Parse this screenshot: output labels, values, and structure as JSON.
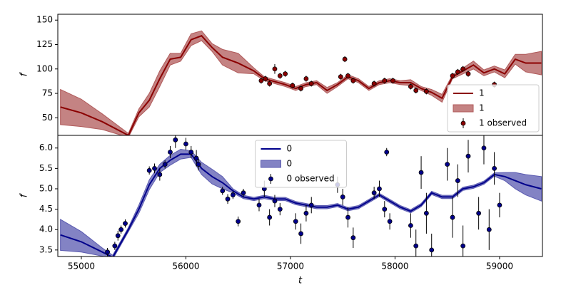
{
  "chart_data": [
    {
      "type": "line",
      "ylabel": "f",
      "xlim": [
        54775,
        59410
      ],
      "ylim": [
        32,
        156
      ],
      "yticks": [
        50,
        75,
        100,
        125,
        150
      ],
      "legend": "lower right",
      "series": [
        {
          "name": "1",
          "kind": "line",
          "color": "#8b0000",
          "x": [
            54800,
            55000,
            55200,
            55450,
            55550,
            55650,
            55750,
            55850,
            55950,
            56050,
            56150,
            56250,
            56350,
            56500,
            56650,
            56750,
            56850,
            56950,
            57050,
            57150,
            57250,
            57350,
            57450,
            57550,
            57650,
            57750,
            57850,
            57950,
            58050,
            58150,
            58250,
            58350,
            58450,
            58550,
            58650,
            58750,
            58850,
            58950,
            59050,
            59150,
            59250,
            59400
          ],
          "values": [
            61,
            55,
            46,
            32,
            55,
            68,
            90,
            110,
            112,
            130,
            134,
            122,
            112,
            106,
            98,
            90,
            87,
            84,
            80,
            84,
            86,
            78,
            84,
            92,
            88,
            80,
            86,
            88,
            86,
            86,
            80,
            76,
            70,
            92,
            98,
            104,
            96,
            100,
            95,
            110,
            106,
            106
          ]
        },
        {
          "name": "1",
          "kind": "band",
          "color": "#b05a5a",
          "x": [
            54800,
            55000,
            55200,
            55450,
            55550,
            55650,
            55750,
            55850,
            55950,
            56050,
            56150,
            56250,
            56350,
            56500,
            56650,
            56750,
            56850,
            56950,
            57050,
            57150,
            57250,
            57350,
            57450,
            57550,
            57650,
            57750,
            57850,
            57950,
            58050,
            58150,
            58250,
            58350,
            58450,
            58550,
            58650,
            58750,
            58850,
            58950,
            59050,
            59150,
            59250,
            59400
          ],
          "lower": [
            43,
            41,
            38,
            30,
            51,
            61,
            82,
            104,
            108,
            124,
            129,
            118,
            104,
            96,
            95,
            88,
            85,
            82,
            78,
            82,
            84,
            75,
            82,
            90,
            86,
            78,
            84,
            86,
            84,
            83,
            78,
            73,
            66,
            90,
            95,
            100,
            93,
            97,
            91,
            105,
            97,
            94
          ],
          "upper": [
            79,
            69,
            54,
            34,
            59,
            75,
            98,
            116,
            116,
            136,
            139,
            126,
            120,
            116,
            101,
            92,
            89,
            86,
            82,
            86,
            88,
            81,
            86,
            94,
            90,
            82,
            88,
            90,
            88,
            89,
            82,
            79,
            74,
            94,
            101,
            108,
            99,
            103,
            99,
            115,
            115,
            118
          ]
        },
        {
          "name": "1 observed",
          "kind": "errorbar",
          "color": "#8b0000",
          "x": [
            56720,
            56760,
            56800,
            56850,
            56900,
            56950,
            57020,
            57100,
            57150,
            57200,
            57480,
            57520,
            57550,
            57600,
            57800,
            57900,
            57980,
            58150,
            58200,
            58300,
            58550,
            58600,
            58650,
            58700,
            58950
          ],
          "values": [
            88,
            90,
            85,
            100,
            93,
            95,
            83,
            80,
            90,
            85,
            92,
            110,
            93,
            88,
            85,
            88,
            88,
            82,
            78,
            77,
            93,
            97,
            100,
            95,
            84
          ],
          "errors": [
            3,
            3,
            3,
            5,
            3,
            3,
            3,
            3,
            3,
            3,
            3,
            3,
            3,
            3,
            3,
            3,
            3,
            3,
            3,
            3,
            3,
            3,
            3,
            3,
            3
          ]
        }
      ]
    },
    {
      "type": "line",
      "ylabel": "f",
      "xlabel": "t",
      "xlim": [
        54775,
        59410
      ],
      "ylim": [
        3.34,
        6.31
      ],
      "xticks": [
        55000,
        56000,
        57000,
        58000,
        59000
      ],
      "yticks": [
        3.5,
        {
          "value": 4,
          "label": "4.0"
        },
        4.5,
        {
          "value": 5,
          "label": "5.0"
        },
        5.5,
        {
          "value": 6,
          "label": "6.0"
        }
      ],
      "legend": "upper center",
      "series": [
        {
          "name": "0",
          "kind": "line",
          "color": "#00008b",
          "x": [
            54800,
            55000,
            55200,
            55300,
            55450,
            55550,
            55650,
            55750,
            55850,
            55950,
            56050,
            56150,
            56250,
            56350,
            56450,
            56550,
            56650,
            56750,
            56850,
            56950,
            57050,
            57150,
            57250,
            57350,
            57450,
            57550,
            57650,
            57750,
            57850,
            57950,
            58050,
            58150,
            58250,
            58350,
            58450,
            58550,
            58650,
            58750,
            58850,
            58950,
            59050,
            59150,
            59250,
            59400
          ],
          "values": [
            3.87,
            3.7,
            3.45,
            3.32,
            4.0,
            4.5,
            5.1,
            5.5,
            5.7,
            5.85,
            5.85,
            5.5,
            5.3,
            5.15,
            4.95,
            4.8,
            4.75,
            4.8,
            4.75,
            4.75,
            4.65,
            4.6,
            4.55,
            4.55,
            4.6,
            4.5,
            4.55,
            4.7,
            4.85,
            4.7,
            4.55,
            4.45,
            4.6,
            4.9,
            4.8,
            4.8,
            5.0,
            5.05,
            5.15,
            5.35,
            5.3,
            5.2,
            5.1,
            5.0
          ]
        },
        {
          "name": "0",
          "kind": "band",
          "color": "#5a5ab0",
          "x": [
            54800,
            55000,
            55200,
            55300,
            55450,
            55550,
            55650,
            55750,
            55850,
            55950,
            56050,
            56150,
            56250,
            56350,
            56450,
            56550,
            56650,
            56750,
            56850,
            56950,
            57050,
            57150,
            57250,
            57350,
            57450,
            57550,
            57650,
            57750,
            57850,
            57950,
            58050,
            58150,
            58250,
            58350,
            58450,
            58550,
            58650,
            58750,
            58850,
            58950,
            59050,
            59150,
            59250,
            59400
          ],
          "lower": [
            3.49,
            3.45,
            3.35,
            3.27,
            3.95,
            4.4,
            4.98,
            5.4,
            5.58,
            5.73,
            5.77,
            5.35,
            5.12,
            5.0,
            4.9,
            4.76,
            4.71,
            4.76,
            4.71,
            4.71,
            4.61,
            4.56,
            4.51,
            4.51,
            4.56,
            4.46,
            4.51,
            4.66,
            4.81,
            4.66,
            4.51,
            4.41,
            4.56,
            4.86,
            4.76,
            4.76,
            4.96,
            5.01,
            5.11,
            5.31,
            5.2,
            5.0,
            4.85,
            4.7
          ],
          "upper": [
            4.25,
            3.95,
            3.55,
            3.37,
            4.05,
            4.6,
            5.22,
            5.6,
            5.82,
            5.97,
            5.93,
            5.65,
            5.48,
            5.3,
            5.0,
            4.84,
            4.79,
            4.84,
            4.79,
            4.79,
            4.69,
            4.64,
            4.59,
            4.59,
            4.64,
            4.54,
            4.59,
            4.74,
            4.89,
            4.74,
            4.59,
            4.49,
            4.64,
            4.94,
            4.84,
            4.84,
            5.04,
            5.09,
            5.19,
            5.39,
            5.4,
            5.4,
            5.35,
            5.3
          ]
        },
        {
          "name": "0 observed",
          "kind": "errorbar",
          "color": "#00008b",
          "x": [
            55250,
            55320,
            55350,
            55380,
            55420,
            55650,
            55700,
            55750,
            55800,
            55850,
            55900,
            56000,
            56050,
            56100,
            56120,
            56350,
            56400,
            56450,
            56500,
            56550,
            56700,
            56750,
            56800,
            56850,
            56900,
            57050,
            57100,
            57150,
            57200,
            57450,
            57500,
            57550,
            57600,
            57800,
            57850,
            57900,
            57920,
            57950,
            58150,
            58200,
            58250,
            58300,
            58350,
            58500,
            58550,
            58600,
            58650,
            58700,
            58800,
            58850,
            58900,
            58950,
            59000
          ],
          "values": [
            3.45,
            3.6,
            3.85,
            4.0,
            4.15,
            5.45,
            5.5,
            5.35,
            5.6,
            5.9,
            6.2,
            6.1,
            5.9,
            5.75,
            5.6,
            4.95,
            4.75,
            4.85,
            4.2,
            4.9,
            4.6,
            5.0,
            4.3,
            4.7,
            4.5,
            4.2,
            3.9,
            4.4,
            4.6,
            5.1,
            4.8,
            4.3,
            3.8,
            4.9,
            5.0,
            4.5,
            5.9,
            4.2,
            4.1,
            3.6,
            5.4,
            4.4,
            3.5,
            5.6,
            4.3,
            5.2,
            3.6,
            5.8,
            4.4,
            6.0,
            4.0,
            5.5,
            4.6
          ],
          "errors": [
            0.1,
            0.1,
            0.12,
            0.1,
            0.1,
            0.1,
            0.12,
            0.15,
            0.1,
            0.15,
            0.2,
            0.15,
            0.15,
            0.2,
            0.15,
            0.1,
            0.12,
            0.1,
            0.12,
            0.1,
            0.15,
            0.2,
            0.2,
            0.15,
            0.15,
            0.2,
            0.25,
            0.2,
            0.2,
            0.2,
            0.2,
            0.25,
            0.25,
            0.15,
            0.2,
            0.2,
            0.1,
            0.2,
            0.3,
            0.4,
            0.4,
            0.5,
            0.4,
            0.4,
            0.5,
            0.4,
            0.5,
            0.4,
            0.4,
            0.4,
            0.5,
            0.4,
            0.3
          ]
        }
      ]
    }
  ]
}
